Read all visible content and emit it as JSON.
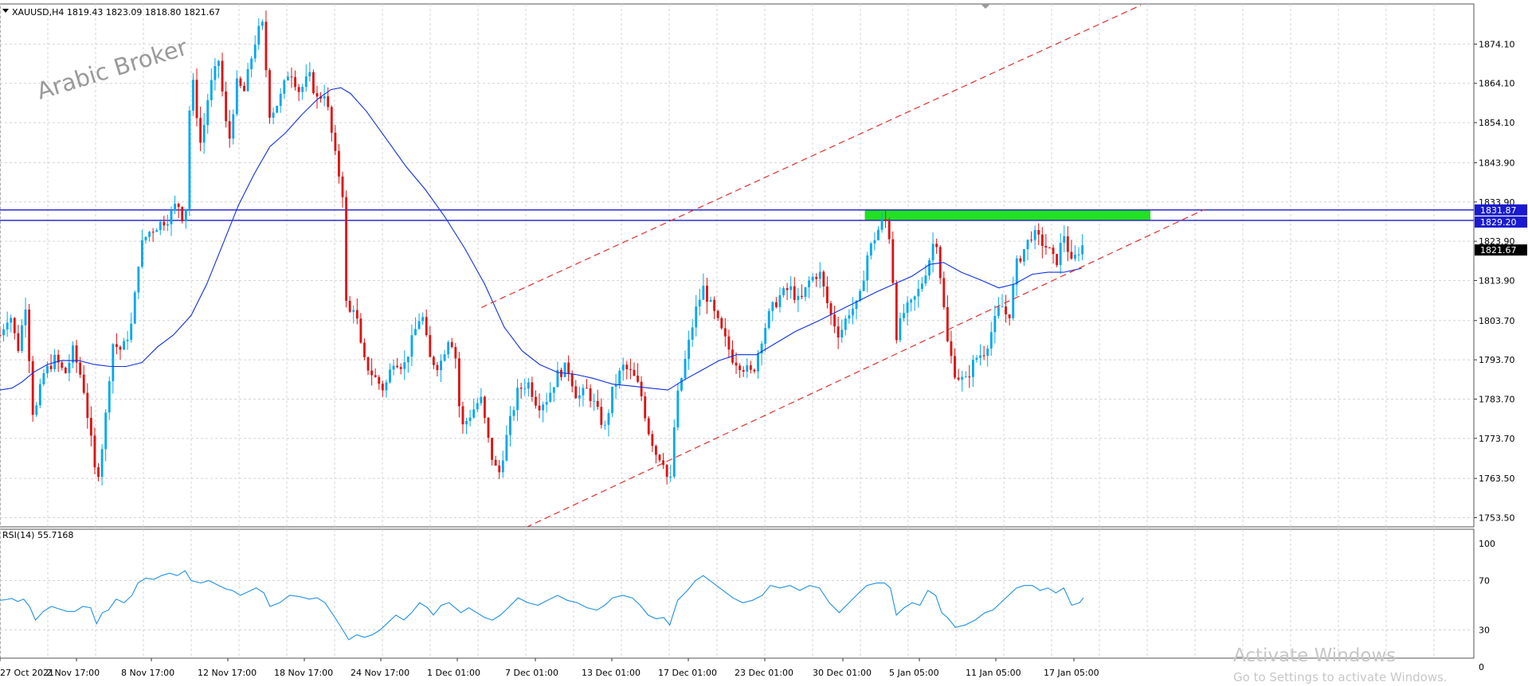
{
  "window": {
    "symbol_header": "XAUUSD,H4  1819.43 1823.09 1818.80 1821.67",
    "watermark": "Arabic Broker",
    "activation_title": "Activate Windows",
    "activation_subtitle": "Go to Settings to activate Windows."
  },
  "colors": {
    "bull": "#00a8f0",
    "bear": "#e01010",
    "ma": "#1030e0",
    "rsi": "#2090e0",
    "levels": "#1a1acc",
    "zone": "#22e022",
    "channel": "#e03030",
    "grid": "#d4d4d4",
    "price_tag": "#000000",
    "level_tag": "#1a1ad0"
  },
  "chart_data": [
    {
      "type": "candlestick",
      "name": "XAUUSD H4",
      "ylim": [
        1748.5,
        1884.5
      ],
      "y_ticks": [
        "1874.10",
        "1864.10",
        "1854.10",
        "1843.90",
        "1833.90",
        "1823.90",
        "1813.90",
        "1803.70",
        "1793.70",
        "1783.70",
        "1773.70",
        "1763.50",
        "1753.50"
      ],
      "x_ticks": [
        "27 Oct 2021",
        "2 Nov 17:00",
        "8 Nov 17:00",
        "12 Nov 17:00",
        "18 Nov 17:00",
        "24 Nov 17:00",
        "1 Dec 01:00",
        "7 Dec 01:00",
        "13 Dec 01:00",
        "17 Dec 01:00",
        "23 Dec 01:00",
        "30 Dec 01:00",
        "5 Jan 05:00",
        "11 Jan 05:00",
        "17 Jan 05:00"
      ],
      "current_price": "1821.67",
      "horizontal_levels": [
        "1831.87",
        "1829.20"
      ],
      "resistance_zone": [
        1829.2,
        1831.9
      ],
      "price_path": [
        [
          0,
          1800
        ],
        [
          10,
          1806
        ],
        [
          18,
          1796
        ],
        [
          26,
          1808
        ],
        [
          34,
          1778
        ],
        [
          44,
          1790
        ],
        [
          56,
          1794
        ],
        [
          66,
          1790
        ],
        [
          74,
          1796
        ],
        [
          84,
          1788
        ],
        [
          92,
          1774
        ],
        [
          98,
          1762
        ],
        [
          106,
          1776
        ],
        [
          114,
          1798
        ],
        [
          124,
          1796
        ],
        [
          134,
          1803
        ],
        [
          142,
          1822
        ],
        [
          150,
          1826
        ],
        [
          160,
          1828
        ],
        [
          172,
          1830
        ],
        [
          180,
          1834
        ],
        [
          188,
          1828
        ],
        [
          194,
          1868
        ],
        [
          204,
          1848
        ],
        [
          212,
          1862
        ],
        [
          222,
          1870
        ],
        [
          232,
          1848
        ],
        [
          240,
          1864
        ],
        [
          248,
          1862
        ],
        [
          258,
          1874
        ],
        [
          266,
          1880
        ],
        [
          274,
          1856
        ],
        [
          284,
          1860
        ],
        [
          294,
          1868
        ],
        [
          304,
          1862
        ],
        [
          314,
          1866
        ],
        [
          322,
          1860
        ],
        [
          330,
          1862
        ],
        [
          340,
          1846
        ],
        [
          348,
          1836
        ],
        [
          352,
          1804
        ],
        [
          360,
          1808
        ],
        [
          368,
          1794
        ],
        [
          378,
          1790
        ],
        [
          390,
          1786
        ],
        [
          400,
          1794
        ],
        [
          410,
          1792
        ],
        [
          420,
          1800
        ],
        [
          428,
          1806
        ],
        [
          436,
          1794
        ],
        [
          446,
          1792
        ],
        [
          456,
          1800
        ],
        [
          462,
          1796
        ],
        [
          468,
          1776
        ],
        [
          478,
          1780
        ],
        [
          488,
          1784
        ],
        [
          498,
          1770
        ],
        [
          506,
          1764
        ],
        [
          516,
          1776
        ],
        [
          526,
          1786
        ],
        [
          536,
          1788
        ],
        [
          546,
          1782
        ],
        [
          556,
          1784
        ],
        [
          566,
          1790
        ],
        [
          576,
          1792
        ],
        [
          586,
          1784
        ],
        [
          596,
          1786
        ],
        [
          604,
          1782
        ],
        [
          614,
          1776
        ],
        [
          622,
          1786
        ],
        [
          632,
          1792
        ],
        [
          642,
          1790
        ],
        [
          650,
          1786
        ],
        [
          658,
          1776
        ],
        [
          666,
          1770
        ],
        [
          674,
          1768
        ],
        [
          680,
          1760
        ],
        [
          686,
          1782
        ],
        [
          696,
          1794
        ],
        [
          706,
          1806
        ],
        [
          714,
          1812
        ],
        [
          724,
          1806
        ],
        [
          734,
          1800
        ],
        [
          744,
          1794
        ],
        [
          754,
          1792
        ],
        [
          764,
          1790
        ],
        [
          774,
          1800
        ],
        [
          782,
          1806
        ],
        [
          792,
          1810
        ],
        [
          802,
          1812
        ],
        [
          812,
          1808
        ],
        [
          822,
          1814
        ],
        [
          832,
          1816
        ],
        [
          842,
          1806
        ],
        [
          852,
          1800
        ],
        [
          862,
          1806
        ],
        [
          872,
          1808
        ],
        [
          880,
          1820
        ],
        [
          890,
          1826
        ],
        [
          898,
          1830
        ],
        [
          904,
          1824
        ],
        [
          910,
          1800
        ],
        [
          918,
          1806
        ],
        [
          926,
          1808
        ],
        [
          934,
          1812
        ],
        [
          942,
          1818
        ],
        [
          950,
          1826
        ],
        [
          956,
          1812
        ],
        [
          962,
          1798
        ],
        [
          970,
          1790
        ],
        [
          980,
          1788
        ],
        [
          990,
          1794
        ],
        [
          1000,
          1796
        ],
        [
          1008,
          1802
        ],
        [
          1016,
          1808
        ],
        [
          1024,
          1804
        ],
        [
          1032,
          1818
        ],
        [
          1040,
          1822
        ],
        [
          1048,
          1826
        ],
        [
          1056,
          1824
        ],
        [
          1064,
          1822
        ],
        [
          1072,
          1818
        ],
        [
          1080,
          1826
        ],
        [
          1088,
          1818
        ],
        [
          1096,
          1822
        ],
        [
          1100,
          1823
        ]
      ],
      "ma_path": [
        [
          0,
          1786
        ],
        [
          12,
          1786.5
        ],
        [
          22,
          1788
        ],
        [
          34,
          1790.5
        ],
        [
          48,
          1792.5
        ],
        [
          62,
          1793.5
        ],
        [
          80,
          1793.5
        ],
        [
          96,
          1792.5
        ],
        [
          112,
          1792
        ],
        [
          128,
          1792
        ],
        [
          144,
          1793
        ],
        [
          160,
          1797
        ],
        [
          176,
          1800
        ],
        [
          194,
          1805
        ],
        [
          210,
          1813
        ],
        [
          226,
          1823
        ],
        [
          242,
          1833
        ],
        [
          258,
          1841
        ],
        [
          274,
          1848
        ],
        [
          290,
          1851.5
        ],
        [
          306,
          1856
        ],
        [
          322,
          1860
        ],
        [
          336,
          1862.5
        ],
        [
          346,
          1863
        ],
        [
          356,
          1861.5
        ],
        [
          372,
          1857
        ],
        [
          392,
          1850
        ],
        [
          412,
          1843
        ],
        [
          432,
          1837
        ],
        [
          452,
          1830
        ],
        [
          472,
          1822
        ],
        [
          492,
          1813
        ],
        [
          512,
          1802
        ],
        [
          530,
          1796
        ],
        [
          548,
          1792.5
        ],
        [
          566,
          1790.5
        ],
        [
          584,
          1790
        ],
        [
          602,
          1789
        ],
        [
          622,
          1787.5
        ],
        [
          642,
          1787
        ],
        [
          660,
          1786.5
        ],
        [
          678,
          1786
        ],
        [
          694,
          1788.5
        ],
        [
          712,
          1791
        ],
        [
          730,
          1793.5
        ],
        [
          748,
          1795
        ],
        [
          768,
          1795
        ],
        [
          788,
          1798
        ],
        [
          808,
          1801
        ],
        [
          830,
          1803.5
        ],
        [
          850,
          1806
        ],
        [
          870,
          1808.5
        ],
        [
          890,
          1811
        ],
        [
          908,
          1813
        ],
        [
          926,
          1815
        ],
        [
          944,
          1818
        ],
        [
          958,
          1818.5
        ],
        [
          976,
          1816
        ],
        [
          996,
          1814
        ],
        [
          1014,
          1812
        ],
        [
          1030,
          1813
        ],
        [
          1048,
          1815.5
        ],
        [
          1064,
          1816
        ],
        [
          1080,
          1816
        ],
        [
          1098,
          1817
        ]
      ],
      "channel_lines": [
        [
          [
            604,
            1807
          ],
          [
            1432,
            1884
          ]
        ],
        [
          [
            660,
            1751
          ],
          [
            1512,
            1832
          ]
        ]
      ]
    },
    {
      "type": "line",
      "name": "RSI(14) 55.7168",
      "ylim": [
        0,
        100
      ],
      "y_ticks": [
        "100",
        "70",
        "30",
        "0"
      ],
      "values": [
        [
          0,
          54
        ],
        [
          6,
          54.5
        ],
        [
          12,
          55.5
        ],
        [
          18,
          53
        ],
        [
          24,
          55
        ],
        [
          30,
          49
        ],
        [
          36,
          38
        ],
        [
          44,
          45
        ],
        [
          52,
          49
        ],
        [
          60,
          47
        ],
        [
          68,
          45
        ],
        [
          76,
          45
        ],
        [
          84,
          49
        ],
        [
          92,
          48
        ],
        [
          98,
          35
        ],
        [
          104,
          44
        ],
        [
          110,
          46
        ],
        [
          118,
          55
        ],
        [
          126,
          52
        ],
        [
          134,
          58
        ],
        [
          140,
          68
        ],
        [
          148,
          72
        ],
        [
          156,
          71
        ],
        [
          164,
          74
        ],
        [
          172,
          76
        ],
        [
          180,
          74
        ],
        [
          188,
          78
        ],
        [
          194,
          70
        ],
        [
          204,
          68
        ],
        [
          212,
          70
        ],
        [
          222,
          66
        ],
        [
          230,
          63
        ],
        [
          236,
          62
        ],
        [
          244,
          58
        ],
        [
          252,
          61
        ],
        [
          260,
          64
        ],
        [
          268,
          60
        ],
        [
          274,
          49
        ],
        [
          284,
          52
        ],
        [
          294,
          58
        ],
        [
          304,
          57
        ],
        [
          314,
          55
        ],
        [
          322,
          56
        ],
        [
          330,
          52
        ],
        [
          340,
          40
        ],
        [
          348,
          30
        ],
        [
          354,
          22
        ],
        [
          362,
          26
        ],
        [
          370,
          24
        ],
        [
          378,
          26
        ],
        [
          386,
          30
        ],
        [
          394,
          36
        ],
        [
          402,
          42
        ],
        [
          410,
          38
        ],
        [
          418,
          44
        ],
        [
          426,
          52
        ],
        [
          434,
          48
        ],
        [
          440,
          42
        ],
        [
          448,
          50
        ],
        [
          456,
          52
        ],
        [
          462,
          48
        ],
        [
          468,
          44
        ],
        [
          476,
          48
        ],
        [
          484,
          44
        ],
        [
          492,
          40
        ],
        [
          500,
          38
        ],
        [
          508,
          42
        ],
        [
          516,
          48
        ],
        [
          526,
          56
        ],
        [
          536,
          52
        ],
        [
          546,
          50
        ],
        [
          556,
          54
        ],
        [
          566,
          58
        ],
        [
          576,
          54
        ],
        [
          586,
          52
        ],
        [
          596,
          48
        ],
        [
          606,
          46
        ],
        [
          614,
          50
        ],
        [
          622,
          56
        ],
        [
          632,
          58
        ],
        [
          642,
          56
        ],
        [
          650,
          50
        ],
        [
          658,
          42
        ],
        [
          666,
          39
        ],
        [
          674,
          40
        ],
        [
          680,
          34
        ],
        [
          688,
          54
        ],
        [
          698,
          62
        ],
        [
          706,
          70
        ],
        [
          714,
          74
        ],
        [
          724,
          68
        ],
        [
          734,
          62
        ],
        [
          744,
          56
        ],
        [
          754,
          52
        ],
        [
          764,
          54
        ],
        [
          774,
          58
        ],
        [
          782,
          66
        ],
        [
          792,
          64
        ],
        [
          802,
          66
        ],
        [
          812,
          62
        ],
        [
          822,
          66
        ],
        [
          832,
          64
        ],
        [
          842,
          52
        ],
        [
          852,
          44
        ],
        [
          862,
          52
        ],
        [
          872,
          60
        ],
        [
          880,
          66
        ],
        [
          890,
          68
        ],
        [
          898,
          68
        ],
        [
          904,
          64
        ],
        [
          910,
          42
        ],
        [
          918,
          48
        ],
        [
          926,
          52
        ],
        [
          934,
          50
        ],
        [
          942,
          62
        ],
        [
          950,
          58
        ],
        [
          956,
          44
        ],
        [
          962,
          40
        ],
        [
          970,
          32
        ],
        [
          980,
          34
        ],
        [
          990,
          38
        ],
        [
          1000,
          44
        ],
        [
          1008,
          46
        ],
        [
          1016,
          52
        ],
        [
          1024,
          58
        ],
        [
          1032,
          64
        ],
        [
          1040,
          66
        ],
        [
          1048,
          66
        ],
        [
          1056,
          62
        ],
        [
          1064,
          64
        ],
        [
          1072,
          60
        ],
        [
          1080,
          64
        ],
        [
          1088,
          50
        ],
        [
          1096,
          52
        ],
        [
          1100,
          56
        ]
      ]
    }
  ]
}
